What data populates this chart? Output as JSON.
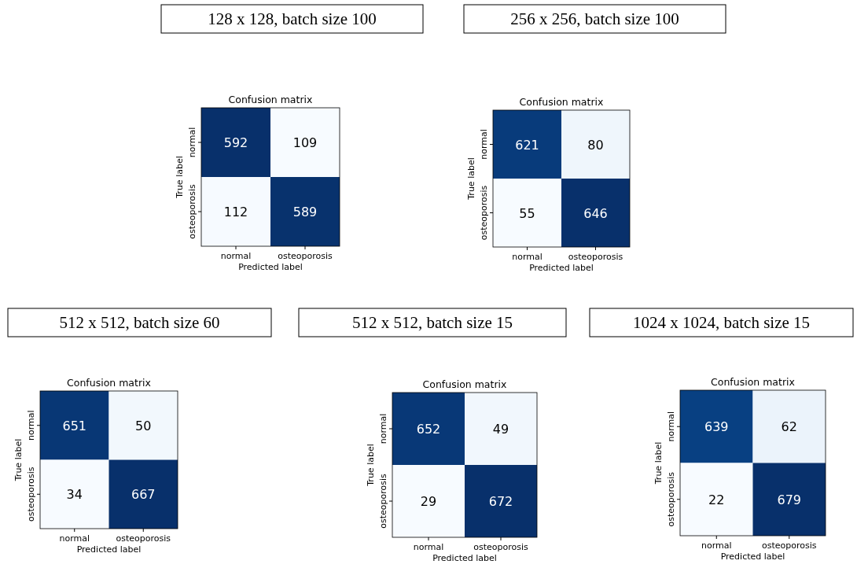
{
  "chart_data": [
    {
      "type": "heatmap",
      "title": "128 x 128, batch size 100",
      "subtitle": "Confusion matrix",
      "xlabel": "Predicted label",
      "ylabel": "True label",
      "categories": [
        "normal",
        "osteoporosis"
      ],
      "y_categories": [
        "normal",
        "osteoporosis"
      ],
      "cells": [
        [
          592,
          109
        ],
        [
          112,
          589
        ]
      ],
      "data_labels": true
    },
    {
      "type": "heatmap",
      "title": "256 x 256, batch size 100",
      "subtitle": "Confusion matrix",
      "xlabel": "Predicted label",
      "ylabel": "True label",
      "categories": [
        "normal",
        "osteoporosis"
      ],
      "y_categories": [
        "normal",
        "osteoporosis"
      ],
      "cells": [
        [
          621,
          80
        ],
        [
          55,
          646
        ]
      ],
      "data_labels": true
    },
    {
      "type": "heatmap",
      "title": "512 x 512, batch size 60",
      "subtitle": "Confusion matrix",
      "xlabel": "Predicted label",
      "ylabel": "True label",
      "categories": [
        "normal",
        "osteoporosis"
      ],
      "y_categories": [
        "normal",
        "osteoporosis"
      ],
      "cells": [
        [
          651,
          50
        ],
        [
          34,
          667
        ]
      ],
      "data_labels": true
    },
    {
      "type": "heatmap",
      "title": "512 x 512, batch size 15",
      "subtitle": "Confusion matrix",
      "xlabel": "Predicted label",
      "ylabel": "True label",
      "categories": [
        "normal",
        "osteoporosis"
      ],
      "y_categories": [
        "normal",
        "osteoporosis"
      ],
      "cells": [
        [
          652,
          49
        ],
        [
          29,
          672
        ]
      ],
      "data_labels": true
    },
    {
      "type": "heatmap",
      "title": "1024 x 1024, batch size 15",
      "subtitle": "Confusion matrix",
      "xlabel": "Predicted label",
      "ylabel": "True label",
      "categories": [
        "normal",
        "osteoporosis"
      ],
      "y_categories": [
        "normal",
        "osteoporosis"
      ],
      "cells": [
        [
          639,
          62
        ],
        [
          22,
          679
        ]
      ],
      "data_labels": true
    }
  ]
}
